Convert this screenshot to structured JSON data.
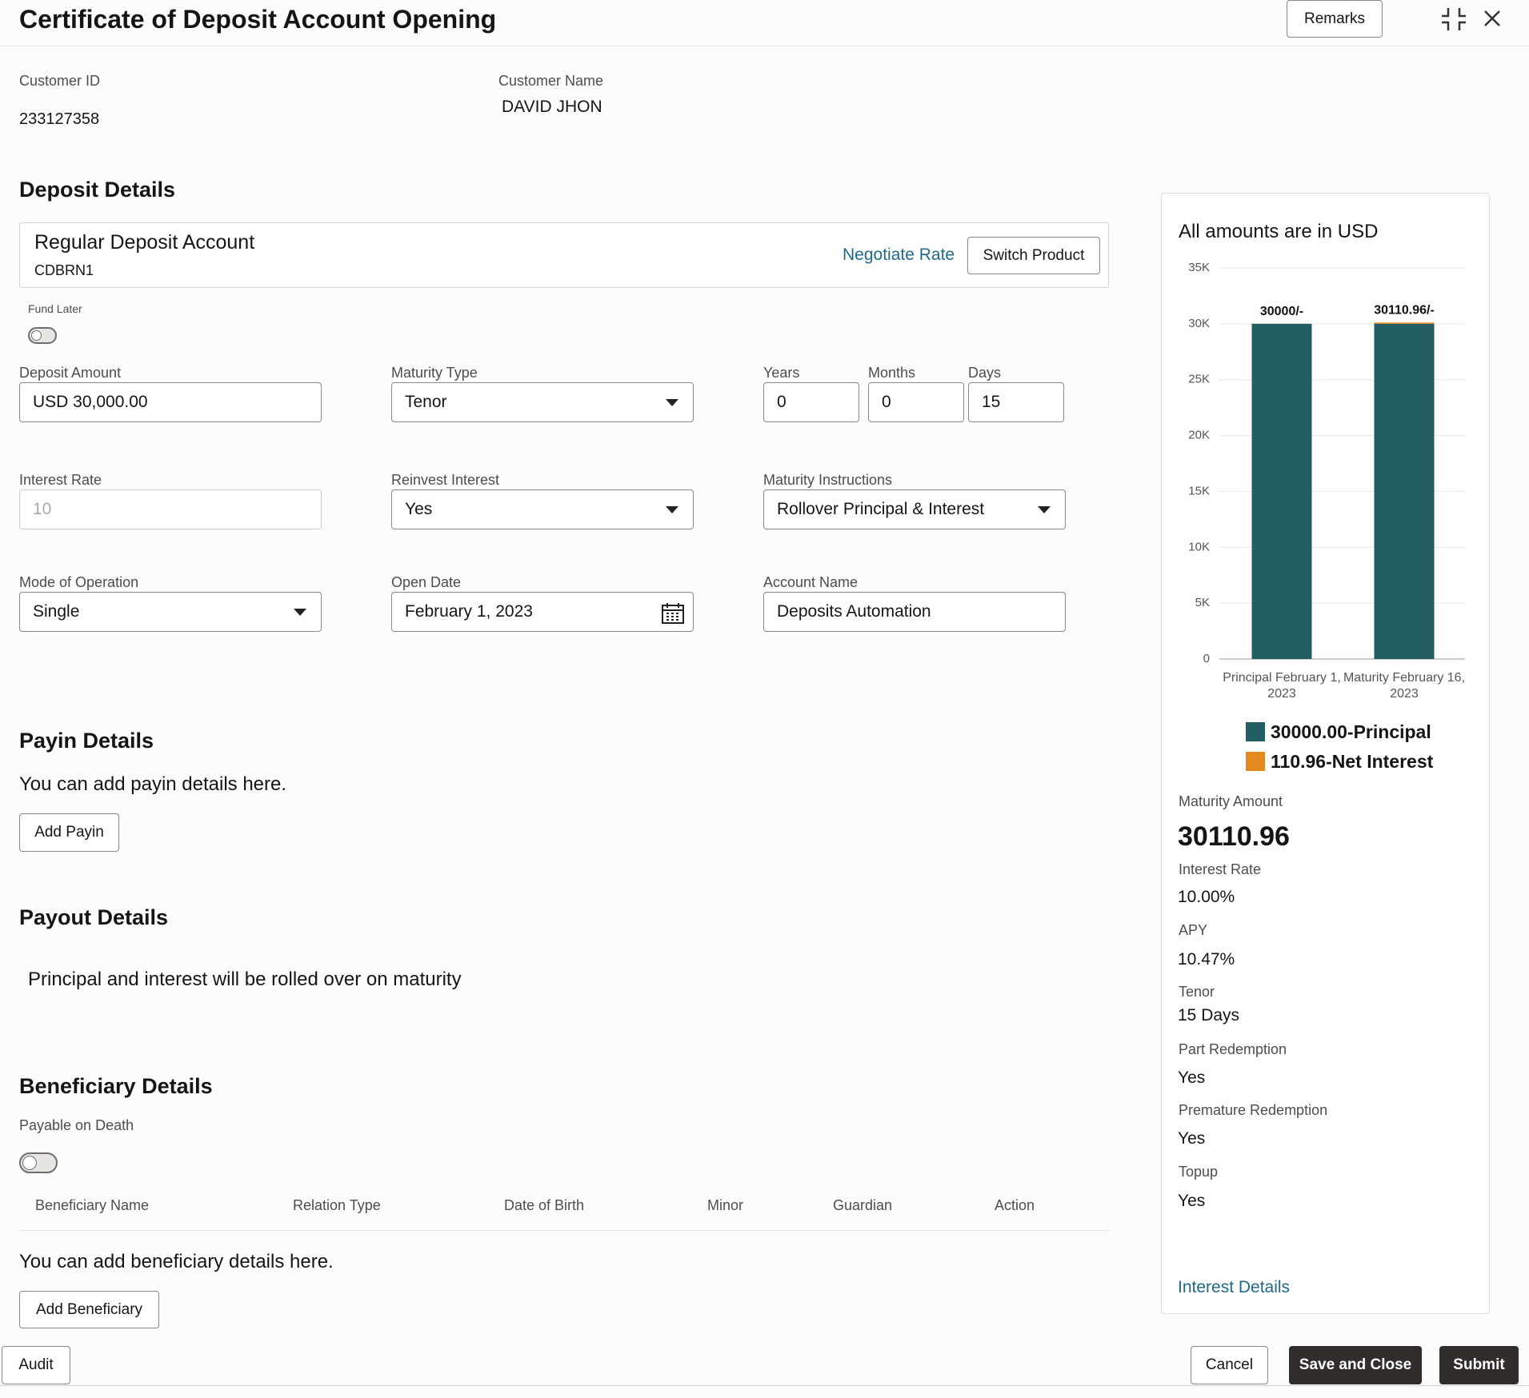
{
  "header": {
    "title": "Certificate of Deposit Account Opening",
    "remarks": "Remarks"
  },
  "customer": {
    "id_label": "Customer ID",
    "id": "233127358",
    "name_label": "Customer Name",
    "name": "DAVID JHON"
  },
  "deposit": {
    "heading": "Deposit Details",
    "product": {
      "name": "Regular Deposit Account",
      "code": "CDBRN1",
      "negotiate": "Negotiate Rate",
      "switch": "Switch Product"
    },
    "fund_later": "Fund Later",
    "fields": [
      {
        "label": "Deposit Amount",
        "value": "USD 30,000.00"
      },
      {
        "label": "Maturity Type",
        "value": "Tenor"
      },
      {
        "label": "Years",
        "value": "0"
      },
      {
        "label": "Months",
        "value": "0"
      },
      {
        "label": "Days",
        "value": "15"
      },
      {
        "label": "Interest Rate",
        "value": "10"
      },
      {
        "label": "Reinvest Interest",
        "value": "Yes"
      },
      {
        "label": "Maturity Instructions",
        "value": "Rollover Principal & Interest"
      },
      {
        "label": "Mode of Operation",
        "value": "Single"
      },
      {
        "label": "Open Date",
        "value": "February 1, 2023"
      },
      {
        "label": "Account Name",
        "value": "Deposits Automation"
      }
    ]
  },
  "payin": {
    "heading": "Payin Details",
    "text": "You can add payin details here.",
    "button": "Add Payin"
  },
  "payout": {
    "heading": "Payout Details",
    "text": "Principal and interest will be rolled over on maturity"
  },
  "beneficiary": {
    "heading": "Beneficiary Details",
    "pod": "Payable on Death",
    "columns": [
      "Beneficiary Name",
      "Relation Type",
      "Date of Birth",
      "Minor",
      "Guardian",
      "Action"
    ],
    "text": "You can add beneficiary details here.",
    "button": "Add Beneficiary"
  },
  "summary": {
    "heading": "All amounts are in USD",
    "chart": {
      "type": "bar",
      "stacked": true,
      "categories": [
        "Principal February 1, 2023",
        "Maturity February 16, 2023"
      ],
      "series": [
        {
          "name": "30000.00-Principal",
          "color": "#225e63",
          "values": [
            30000,
            30000
          ]
        },
        {
          "name": "110.96-Net Interest",
          "color": "#e38a1e",
          "values": [
            0,
            110.96
          ]
        }
      ],
      "bar_labels": [
        "30000/-",
        "30110.96/-"
      ],
      "ylim": [
        0,
        35000
      ],
      "yticks": [
        0,
        {
          "value": 5000,
          "label": "5K"
        },
        {
          "value": 10000,
          "label": "10K"
        },
        {
          "value": 15000,
          "label": "15K"
        },
        {
          "value": 20000,
          "label": "20K"
        },
        {
          "value": 25000,
          "label": "25K"
        },
        {
          "value": 30000,
          "label": "30K"
        },
        {
          "value": 35000,
          "label": "35K"
        }
      ],
      "grid": true
    },
    "details": [
      {
        "label": "Maturity Amount",
        "value": "30110.96"
      },
      {
        "label": "Interest Rate",
        "value": "10.00%"
      },
      {
        "label": "APY",
        "value": "10.47%"
      },
      {
        "label": "Tenor",
        "value": "15 Days"
      },
      {
        "label": "Part Redemption",
        "value": "Yes"
      },
      {
        "label": "Premature Redemption",
        "value": "Yes"
      },
      {
        "label": "Topup",
        "value": "Yes"
      }
    ],
    "link": "Interest Details"
  },
  "footer": {
    "audit": "Audit",
    "cancel": "Cancel",
    "save": "Save and Close",
    "submit": "Submit"
  }
}
